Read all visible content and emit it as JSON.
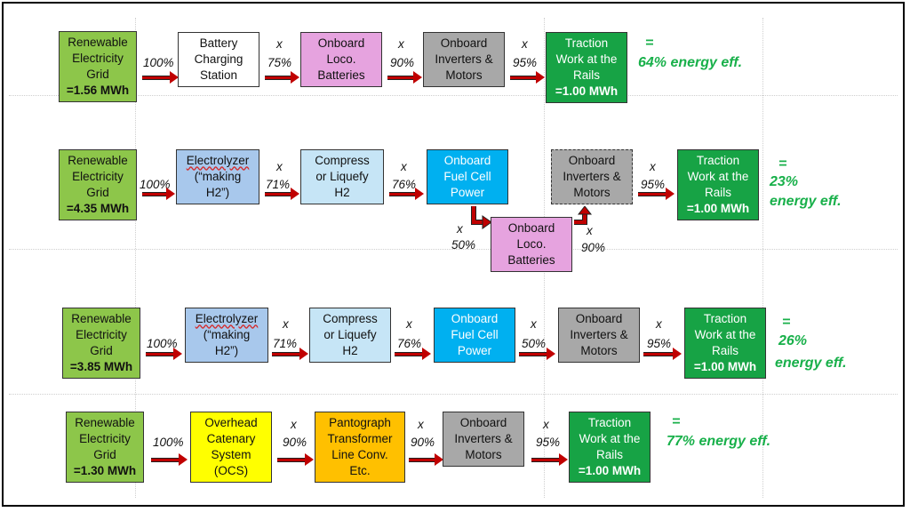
{
  "rows": [
    {
      "grid": {
        "line1": "Renewable",
        "line2": "Electricity",
        "line3": "Grid",
        "value": "=1.56 MWh"
      },
      "p0": "100%",
      "b1": [
        "Battery",
        "Charging",
        "Station"
      ],
      "x1": "x",
      "p1": "75%",
      "b2": [
        "Onboard",
        "Loco.",
        "Batteries"
      ],
      "x2": "x",
      "p2": "90%",
      "b3": [
        "Onboard",
        "Inverters &",
        "Motors"
      ],
      "x3": "x",
      "p3": "95%",
      "traction": {
        "line1": "Traction",
        "line2": "Work at the",
        "line3": "Rails",
        "value": "=1.00 MWh"
      },
      "eq": "=",
      "eff": "64%  energy eff."
    },
    {
      "grid": {
        "line1": "Renewable",
        "line2": "Electricity",
        "line3": "Grid",
        "value": "=4.35 MWh"
      },
      "p0": "100%",
      "b1": [
        "Electrolyzer",
        "(“making",
        "H2”)"
      ],
      "x1": "x",
      "p1": "71%",
      "b2": [
        "Compress",
        "or Liquefy",
        "H2"
      ],
      "x2": "x",
      "p2": "76%",
      "b3": [
        "Onboard",
        "Fuel Cell",
        "Power"
      ],
      "x4": "x",
      "p4": "50%",
      "b4": [
        "Onboard",
        "Loco.",
        "Batteries"
      ],
      "x5": "x",
      "p5": "90%",
      "b5": [
        "Onboard",
        "Inverters &",
        "Motors"
      ],
      "x3": "x",
      "p3": "95%",
      "traction": {
        "line1": "Traction",
        "line2": "Work at the",
        "line3": "Rails",
        "value": "=1.00 MWh"
      },
      "eq": "=",
      "eff1": "23%",
      "eff2": "energy eff."
    },
    {
      "grid": {
        "line1": "Renewable",
        "line2": "Electricity",
        "line3": "Grid",
        "value": "=3.85 MWh"
      },
      "p0": "100%",
      "b1": [
        "Electrolyzer",
        "(“making",
        "H2”)"
      ],
      "x1": "x",
      "p1": "71%",
      "b2": [
        "Compress",
        "or Liquefy",
        "H2"
      ],
      "x2": "x",
      "p2": "76%",
      "b3": [
        "Onboard",
        "Fuel Cell",
        "Power"
      ],
      "x4": "x",
      "p4": "50%",
      "b5": [
        "Onboard",
        "Inverters &",
        "Motors"
      ],
      "x3": "x",
      "p3": "95%",
      "traction": {
        "line1": "Traction",
        "line2": "Work at the",
        "line3": "Rails",
        "value": "=1.00 MWh"
      },
      "eq": "=",
      "eff1": "26%",
      "eff2": "energy eff."
    },
    {
      "grid": {
        "line1": "Renewable",
        "line2": "Electricity",
        "line3": "Grid",
        "value": "=1.30 MWh"
      },
      "p0": "100%",
      "b1": [
        "Overhead",
        "Catenary",
        "System",
        "(OCS)"
      ],
      "x1": "x",
      "p1": "90%",
      "b2": [
        "Pantograph",
        "Transformer",
        "Line Conv.",
        "Etc."
      ],
      "x2": "x",
      "p2": "90%",
      "b3": [
        "Onboard",
        "Inverters &",
        "Motors"
      ],
      "x3": "x",
      "p3": "95%",
      "traction": {
        "line1": "Traction",
        "line2": "Work at the",
        "line3": "Rails",
        "value": "=1.00 MWh"
      },
      "eq": "=",
      "eff": "77%  energy eff."
    }
  ],
  "colors": {
    "grid": "#8dc64a",
    "traction": "#17a345",
    "arrow": "#c00000",
    "efficiency": "#18b04a",
    "batteries": "#e6a3df",
    "inverters": "#a8a8a8",
    "electrolyzer": "#a8c8ec",
    "compress": "#c6e5f6",
    "fuel_cell": "#00b0f0",
    "ocs": "#ffff00",
    "pantograph": "#ffc000"
  }
}
